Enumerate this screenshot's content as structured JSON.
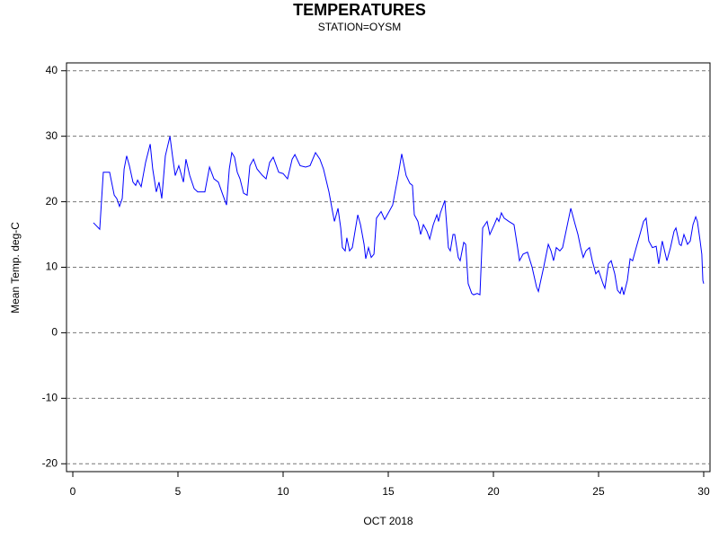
{
  "chart_data": {
    "type": "line",
    "title": "TEMPERATURES",
    "subtitle": "STATION=OYSM",
    "x_label": "OCT 2018",
    "y_label": "Mean Temp. deg-C",
    "xlim": [
      -0.3,
      30.3
    ],
    "xticks": [
      0,
      5,
      10,
      15,
      20,
      25,
      30
    ],
    "ylim": [
      -21.2,
      41.2
    ],
    "yticks": [
      -20,
      -10,
      0,
      10,
      20,
      30,
      40
    ],
    "grid": true,
    "series": [
      {
        "color": "#0000ff",
        "x": [
          0.98,
          1.28,
          1.45,
          1.75,
          1.97,
          2.09,
          2.22,
          2.35,
          2.44,
          2.56,
          2.69,
          2.86,
          2.99,
          3.08,
          3.25,
          3.46,
          3.68,
          3.8,
          3.97,
          4.1,
          4.23,
          4.4,
          4.62,
          4.74,
          4.87,
          5.04,
          5.26,
          5.38,
          5.56,
          5.77,
          5.94,
          6.28,
          6.5,
          6.71,
          6.92,
          7.14,
          7.31,
          7.44,
          7.56,
          7.69,
          7.82,
          7.95,
          8.12,
          8.29,
          8.42,
          8.59,
          8.76,
          9.02,
          9.19,
          9.36,
          9.53,
          9.79,
          10.0,
          10.21,
          10.43,
          10.56,
          10.81,
          11.07,
          11.28,
          11.54,
          11.75,
          11.92,
          12.18,
          12.35,
          12.44,
          12.61,
          12.74,
          12.82,
          12.95,
          13.03,
          13.16,
          13.29,
          13.55,
          13.68,
          13.85,
          13.93,
          14.06,
          14.19,
          14.32,
          14.44,
          14.66,
          14.83,
          15.04,
          15.21,
          15.47,
          15.64,
          15.85,
          16.03,
          16.15,
          16.24,
          16.41,
          16.54,
          16.67,
          16.84,
          16.97,
          17.14,
          17.31,
          17.39,
          17.48,
          17.69,
          17.86,
          17.95,
          18.08,
          18.16,
          18.33,
          18.42,
          18.59,
          18.68,
          18.8,
          18.97,
          19.06,
          19.23,
          19.36,
          19.49,
          19.7,
          19.83,
          20.04,
          20.17,
          20.26,
          20.38,
          20.51,
          20.73,
          20.98,
          21.15,
          21.24,
          21.41,
          21.62,
          21.84,
          22.05,
          22.14,
          22.22,
          22.39,
          22.61,
          22.74,
          22.86,
          22.99,
          23.16,
          23.29,
          23.55,
          23.68,
          23.89,
          24.02,
          24.15,
          24.27,
          24.4,
          24.57,
          24.7,
          24.87,
          25.0,
          25.21,
          25.3,
          25.47,
          25.6,
          25.77,
          25.9,
          26.03,
          26.11,
          26.2,
          26.37,
          26.5,
          26.62,
          26.79,
          27.01,
          27.14,
          27.26,
          27.39,
          27.56,
          27.74,
          27.86,
          28.03,
          28.25,
          28.42,
          28.59,
          28.68,
          28.85,
          28.93,
          29.06,
          29.23,
          29.36,
          29.49,
          29.62,
          29.7,
          29.83,
          29.91,
          29.96,
          30.0
        ],
        "values": [
          16.8,
          15.8,
          24.5,
          24.5,
          21,
          20.5,
          19.3,
          20.5,
          25,
          27,
          25.5,
          23,
          22.5,
          23.3,
          22.3,
          26,
          28.8,
          25,
          21.5,
          23,
          20.5,
          27,
          30,
          27,
          24,
          25.5,
          23,
          26.5,
          24,
          22,
          21.5,
          21.5,
          25.3,
          23.5,
          23,
          21,
          19.5,
          25,
          27.5,
          26.8,
          24.5,
          23.5,
          21.3,
          21,
          25.5,
          26.5,
          25,
          24,
          23.5,
          26,
          26.8,
          24.5,
          24.3,
          23.5,
          26.5,
          27.2,
          25.5,
          25.3,
          25.5,
          27.5,
          26.5,
          25,
          21.5,
          18.5,
          17,
          19,
          16,
          13,
          12.5,
          14.5,
          12.5,
          13,
          18,
          16.5,
          13.5,
          11.3,
          13,
          11.5,
          12,
          17.5,
          18.5,
          17.3,
          18.5,
          19.5,
          24,
          27.3,
          24,
          22.8,
          22.5,
          18,
          17,
          15,
          16.5,
          15.5,
          14.3,
          16.5,
          18,
          17,
          18.3,
          20.2,
          13,
          12.5,
          15,
          15,
          11.5,
          11,
          13.8,
          13.5,
          7.5,
          6,
          5.8,
          6,
          5.8,
          16,
          17,
          15,
          16.5,
          17.5,
          17,
          18.3,
          17.5,
          17,
          16.5,
          13,
          11,
          12,
          12.3,
          10,
          7,
          6.3,
          7.5,
          10,
          13.5,
          12.5,
          11,
          13,
          12.5,
          13,
          17,
          19,
          16.5,
          15,
          13,
          11.5,
          12.5,
          13,
          11,
          9,
          9.5,
          7.5,
          6.8,
          10.5,
          11,
          9,
          6.5,
          6,
          7,
          5.8,
          8,
          11.3,
          11,
          13,
          15.5,
          17,
          17.5,
          14,
          13,
          13.2,
          10.5,
          14,
          11,
          13,
          15.5,
          16,
          13.5,
          13.3,
          15,
          13.5,
          14,
          16.5,
          17.7,
          17,
          14,
          12,
          8,
          7.5
        ]
      }
    ]
  }
}
